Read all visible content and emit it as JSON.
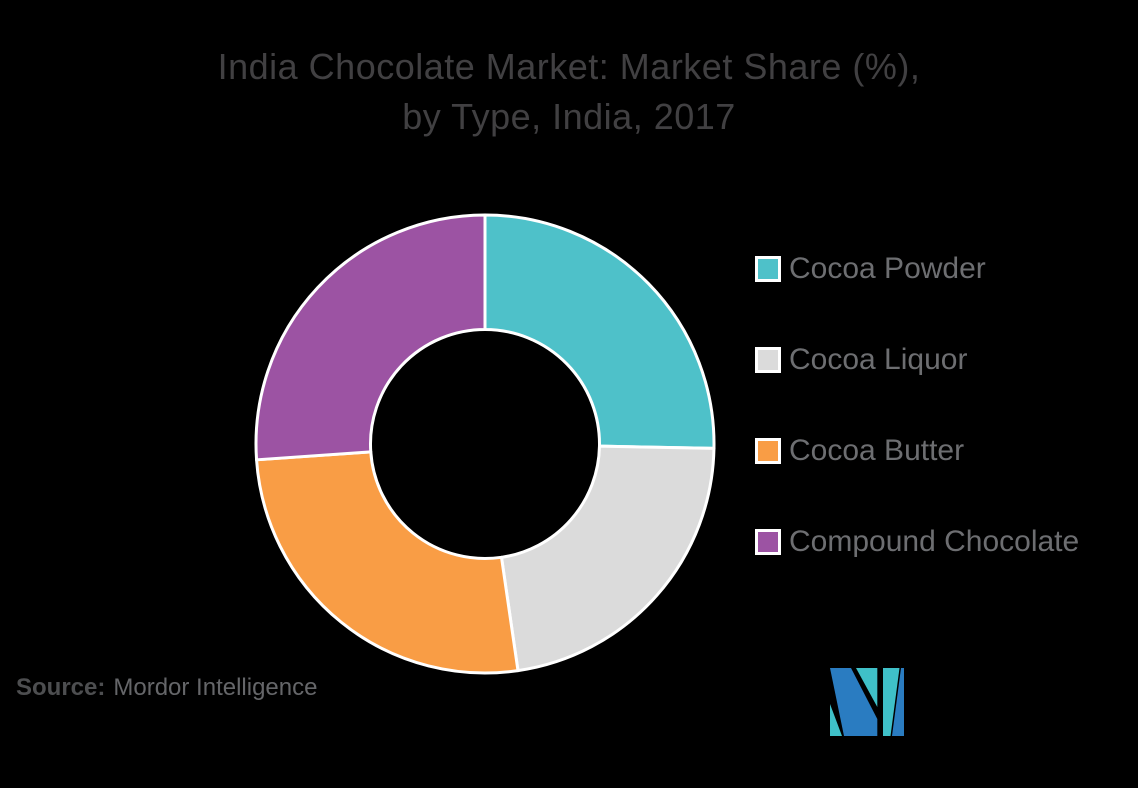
{
  "background_color": "#000000",
  "title": {
    "line1": "India Chocolate Market: Market Share (%),",
    "line2": "by Type, India, 2017",
    "color": "#414042"
  },
  "chart_data": {
    "type": "pie",
    "subtype": "donut",
    "title": "India Chocolate Market: Market Share (%), by Type, India, 2017",
    "categories": [
      "Cocoa Powder",
      "Cocoa Liquor",
      "Cocoa Butter",
      "Compound Chocolate"
    ],
    "values": [
      25.3,
      22.4,
      26.2,
      26.1
    ],
    "values_estimated": true,
    "colors": [
      "#4EC1C9",
      "#DBDBDB",
      "#F99D45",
      "#9C53A3"
    ],
    "start_angle_deg": 0,
    "direction": "clockwise",
    "inner_radius_ratio": 0.5,
    "slice_border_color": "#FFFFFF",
    "legend_position": "right",
    "data_labels_shown": false
  },
  "legend": {
    "text_color": "#6D6E71",
    "items": [
      {
        "label": "Cocoa Powder",
        "color": "#4EC1C9"
      },
      {
        "label": "Cocoa Liquor",
        "color": "#DBDBDB"
      },
      {
        "label": "Cocoa Butter",
        "color": "#F99D45"
      },
      {
        "label": "Compound Chocolate",
        "color": "#9C53A3"
      }
    ]
  },
  "source": {
    "prefix": "Source:",
    "name": "Mordor Intelligence"
  },
  "logo": {
    "name": "mordor-intelligence-logo",
    "blue": "#2A7CC1",
    "teal": "#3FC0C8"
  }
}
